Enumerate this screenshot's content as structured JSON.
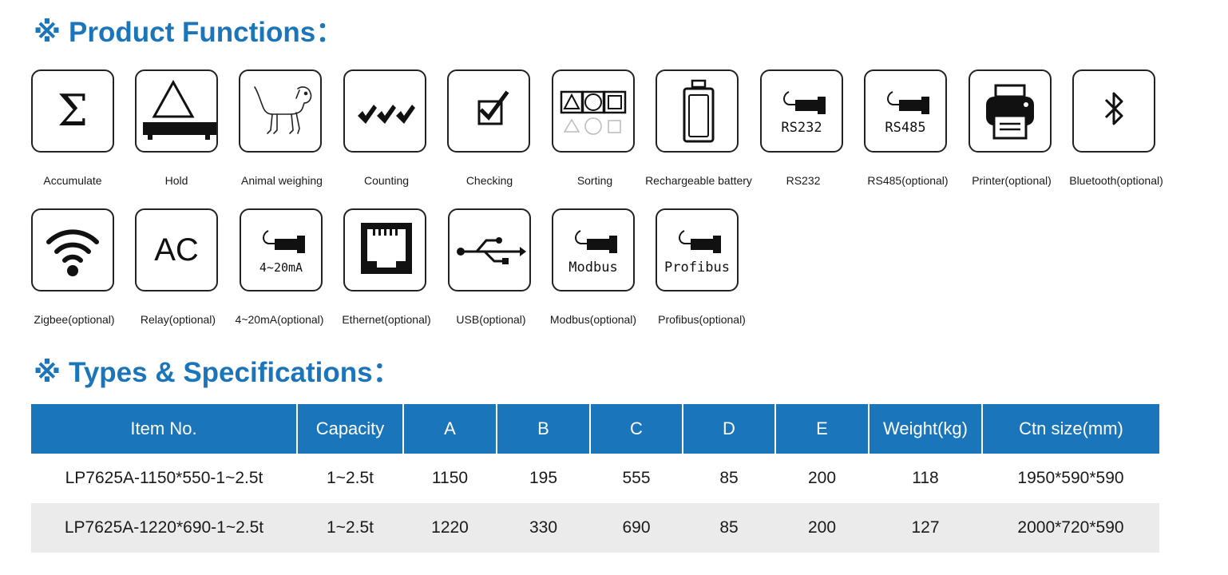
{
  "headings": {
    "functions": "Product Functions",
    "specs": "Types & Specifications",
    "mark": "※",
    "colon": "："
  },
  "functions": [
    {
      "label": "Accumulate",
      "icon": "sigma-icon"
    },
    {
      "label": "Hold",
      "icon": "scale-hold-icon"
    },
    {
      "label": "Animal weighing",
      "icon": "dog-icon"
    },
    {
      "label": "Counting",
      "icon": "checkmarks-icon"
    },
    {
      "label": "Checking",
      "icon": "checkbox-icon"
    },
    {
      "label": "Sorting",
      "icon": "shapes-icon"
    },
    {
      "label": "Rechargeable battery",
      "icon": "battery-icon"
    },
    {
      "label": "RS232",
      "icon": "rs232-plug-icon",
      "icon_text": "RS232"
    },
    {
      "label": "RS485(optional)",
      "icon": "rs485-plug-icon",
      "icon_text": "RS485"
    },
    {
      "label": "Printer(optional)",
      "icon": "printer-icon"
    },
    {
      "label": "Bluetooth(optional)",
      "icon": "bluetooth-icon"
    },
    {
      "label": "Zigbee(optional)",
      "icon": "wifi-icon"
    },
    {
      "label": "Relay(optional)",
      "icon": "ac-icon",
      "icon_text": "AC"
    },
    {
      "label": "4~20mA(optional)",
      "icon": "current-plug-icon",
      "icon_text": "4~20mA"
    },
    {
      "label": "Ethernet(optional)",
      "icon": "ethernet-port-icon"
    },
    {
      "label": "USB(optional)",
      "icon": "usb-icon"
    },
    {
      "label": "Modbus(optional)",
      "icon": "modbus-plug-icon",
      "icon_text": "Modbus"
    },
    {
      "label": "Profibus(optional)",
      "icon": "profibus-plug-icon",
      "icon_text": "Profibus"
    }
  ],
  "table": {
    "headers": [
      "Item No.",
      "Capacity",
      "A",
      "B",
      "C",
      "D",
      "E",
      "Weight(kg)",
      "Ctn size(mm)"
    ],
    "rows": [
      [
        "LP7625A-1150*550-1~2.5t",
        "1~2.5t",
        "1150",
        "195",
        "555",
        "85",
        "200",
        "118",
        "1950*590*590"
      ],
      [
        "LP7625A-1220*690-1~2.5t",
        "1~2.5t",
        "1220",
        "330",
        "690",
        "85",
        "200",
        "127",
        "2000*720*590"
      ]
    ]
  },
  "colors": {
    "accent": "#1b75bb",
    "row_alt": "#ebebeb"
  }
}
